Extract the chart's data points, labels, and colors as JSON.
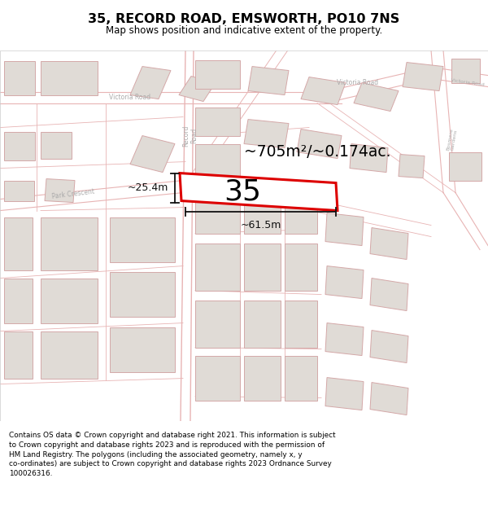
{
  "title": "35, RECORD ROAD, EMSWORTH, PO10 7NS",
  "subtitle": "Map shows position and indicative extent of the property.",
  "footer": "Contains OS data © Crown copyright and database right 2021. This information is subject to Crown copyright and database rights 2023 and is reproduced with the permission of HM Land Registry. The polygons (including the associated geometry, namely x, y co-ordinates) are subject to Crown copyright and database rights 2023 Ordnance Survey 100026316.",
  "area_label": "~705m²/~0.174ac.",
  "width_label": "~61.5m",
  "height_label": "~25.4m",
  "number_label": "35",
  "map_bg": "#ffffff",
  "road_line_color": "#e8b4b4",
  "building_fill": "#e0dbd6",
  "building_edge": "#d4a8a8",
  "highlight_color": "#dd0000",
  "road_label_color": "#aaaaaa",
  "dim_line_color": "#111111"
}
